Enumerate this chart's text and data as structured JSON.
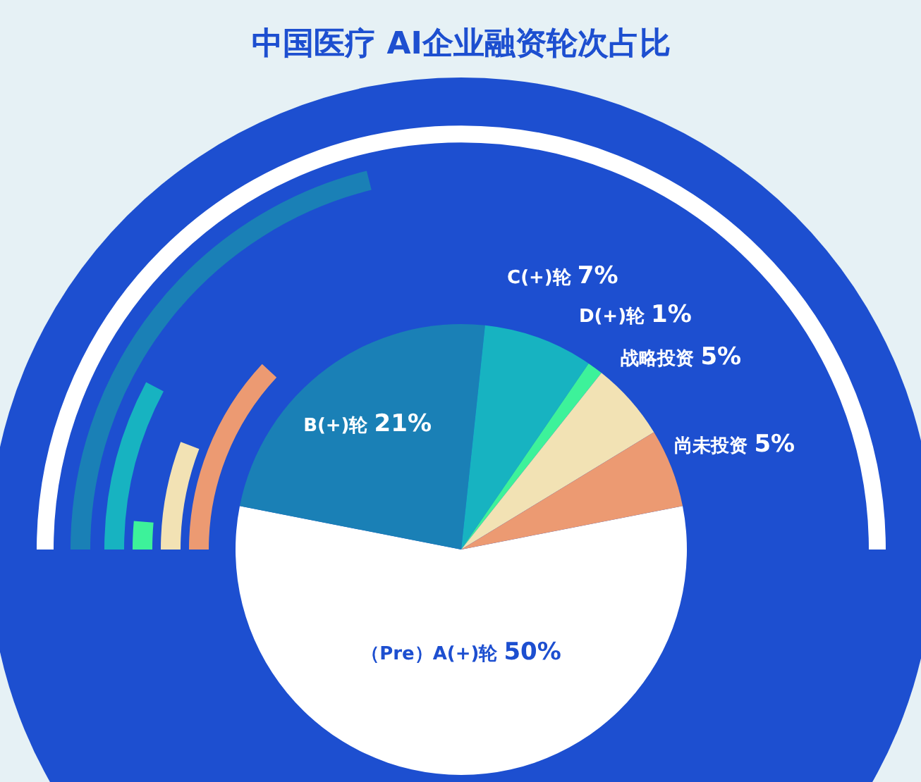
{
  "chart_data": {
    "type": "pie",
    "title": "中国医疗 AI企业融资轮次占比",
    "categories": [
      "（Pre）A(+)轮",
      "B(+)轮",
      "C(+)轮",
      "D(+)轮",
      "战略投资",
      "尚未投资"
    ],
    "values": [
      50,
      21,
      7,
      1,
      5,
      5
    ],
    "value_labels": [
      "50%",
      "21%",
      "7%",
      "1%",
      "5%",
      "5%"
    ],
    "colors": [
      "#ffffff",
      "#1a80b6",
      "#17b3c1",
      "#3df29a",
      "#f2e2b4",
      "#ec9a72"
    ]
  }
}
